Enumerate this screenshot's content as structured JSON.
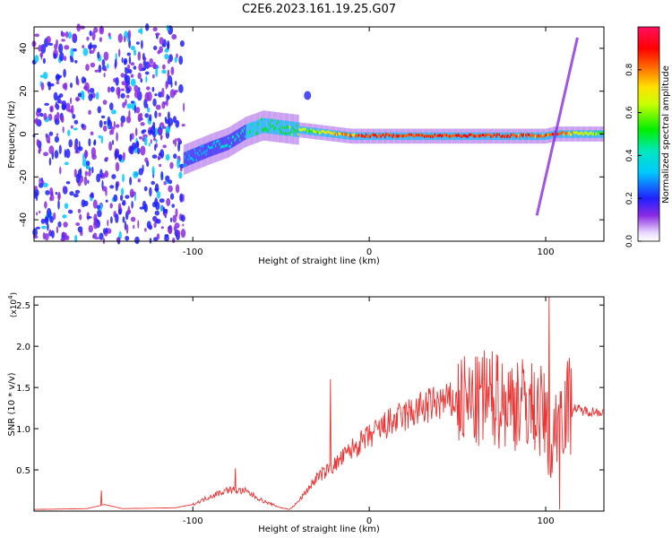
{
  "figure": {
    "title": "C2E6.2023.161.19.25.G07"
  },
  "chart_data": [
    {
      "type": "heatmap",
      "xlabel": "Height of straight line (km)",
      "ylabel": "Frequency (Hz)",
      "xlim": [
        -190,
        133
      ],
      "ylim": [
        -50,
        50
      ],
      "xticks": [
        -100,
        0,
        100
      ],
      "yticks": [
        -40,
        -20,
        0,
        20,
        40
      ],
      "colorbar": {
        "label": "Normalized spectral amplitude",
        "range": [
          0,
          1
        ],
        "ticks": [
          0.0,
          0.2,
          0.4,
          0.6,
          0.8
        ],
        "colormap": "rainbow-white-purple-blue-cyan-green-yellow-red-pink"
      },
      "features": {
        "noise_region_x": [
          -190,
          -105
        ],
        "main_trace": {
          "x": [
            -105,
            -90,
            -80,
            -70,
            -60,
            -50,
            -40,
            -30,
            -20,
            -10,
            0,
            20,
            40,
            60,
            80,
            100,
            105,
            133
          ],
          "freq": [
            -12,
            -7,
            -4,
            1,
            4,
            3,
            2,
            1,
            0,
            -1,
            -1,
            -1,
            -1,
            -1,
            -1,
            -1,
            0,
            0
          ],
          "amplitude": [
            0.25,
            0.3,
            0.35,
            0.4,
            0.45,
            0.5,
            0.55,
            0.6,
            0.7,
            0.8,
            0.85,
            0.85,
            0.85,
            0.85,
            0.85,
            0.8,
            0.85,
            0.5
          ]
        },
        "blob": {
          "x": -35,
          "freq": 18
        },
        "diagonal_arm": {
          "x": [
            95,
            118
          ],
          "freq": [
            -38,
            45
          ]
        }
      }
    },
    {
      "type": "line",
      "xlabel": "Height of straight line (km)",
      "ylabel": "SNR (10 * v/v)",
      "yscale_label": "(x10",
      "yscale_exponent": "4",
      "y_unit_multiplier": 10000,
      "xlim": [
        -190,
        133
      ],
      "ylim": [
        0,
        2.6
      ],
      "xticks": [
        -100,
        0,
        100
      ],
      "yticks": [
        0.5,
        1.0,
        1.5,
        2.0,
        2.5
      ],
      "color": "#ee3333",
      "envelope": {
        "x": [
          -190,
          -160,
          -150,
          -140,
          -110,
          -100,
          -90,
          -80,
          -70,
          -60,
          -50,
          -45,
          -40,
          -30,
          -20,
          -10,
          0,
          10,
          20,
          30,
          40,
          50,
          60,
          70,
          80,
          90,
          100,
          103,
          106,
          110,
          120,
          133
        ],
        "y": [
          0.02,
          0.03,
          0.08,
          0.03,
          0.04,
          0.08,
          0.18,
          0.26,
          0.24,
          0.12,
          0.04,
          0.02,
          0.12,
          0.4,
          0.55,
          0.75,
          0.9,
          1.05,
          1.15,
          1.25,
          1.32,
          1.33,
          1.3,
          1.35,
          1.32,
          1.3,
          1.15,
          0.6,
          1.1,
          1.3,
          1.22,
          1.2
        ]
      },
      "spikes": [
        {
          "x": -152,
          "y": 0.25
        },
        {
          "x": -76,
          "y": 0.52
        },
        {
          "x": -22,
          "y": 1.6
        },
        {
          "x": 65,
          "y": 1.95
        },
        {
          "x": 72,
          "y": 1.9
        },
        {
          "x": 84,
          "y": 1.8
        },
        {
          "x": 102,
          "y": 2.6
        },
        {
          "x": 108,
          "y": 0.02
        }
      ]
    }
  ]
}
